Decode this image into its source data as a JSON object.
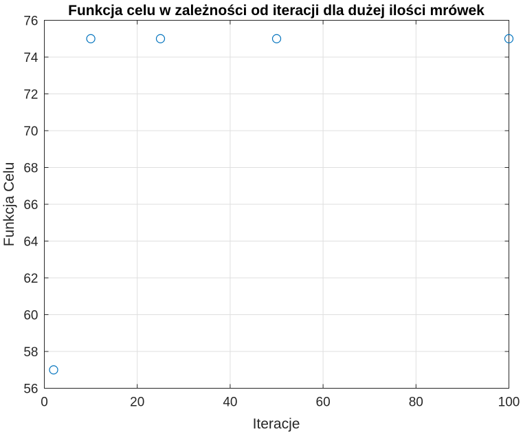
{
  "chart_data": {
    "type": "scatter",
    "title": "Funkcja celu w zależności od iteracji dla dużej ilości mrówek",
    "xlabel": "Iteracje",
    "ylabel": "Funkcja Celu",
    "xlim": [
      0,
      100
    ],
    "ylim": [
      56,
      76
    ],
    "xticks": [
      0,
      20,
      40,
      60,
      80,
      100
    ],
    "yticks": [
      56,
      58,
      60,
      62,
      64,
      66,
      68,
      70,
      72,
      74,
      76
    ],
    "grid": true,
    "marker": "circle",
    "color": "#0072bd",
    "points": [
      {
        "x": 2,
        "y": 57
      },
      {
        "x": 10,
        "y": 75
      },
      {
        "x": 25,
        "y": 75
      },
      {
        "x": 50,
        "y": 75
      },
      {
        "x": 100,
        "y": 75
      }
    ]
  }
}
